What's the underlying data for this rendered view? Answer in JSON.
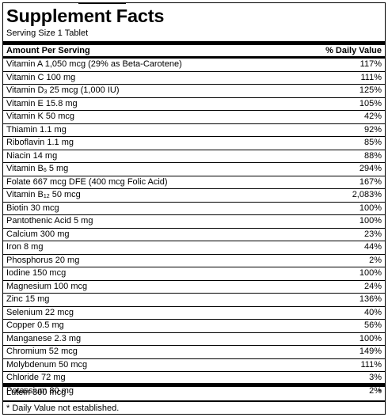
{
  "header": {
    "title": "Supplement Facts",
    "serving_size": "Serving Size 1 Tablet"
  },
  "columns": {
    "amount": "Amount Per Serving",
    "daily_value": "% Daily Value"
  },
  "nutrients": [
    {
      "name": "Vitamin A 1,050 mcg (29% as Beta-Carotene)",
      "dv": "117%"
    },
    {
      "name": "Vitamin C 100 mg",
      "dv": "111%"
    },
    {
      "name_pre": "Vitamin D",
      "name_sub": "3",
      "name_post": " 25 mcg (1,000 IU)",
      "dv": "125%"
    },
    {
      "name": "Vitamin E 15.8 mg",
      "dv": "105%"
    },
    {
      "name": "Vitamin K 50 mcg",
      "dv": "42%"
    },
    {
      "name": "Thiamin 1.1 mg",
      "dv": "92%"
    },
    {
      "name": "Riboflavin 1.1 mg",
      "dv": "85%"
    },
    {
      "name": "Niacin 14 mg",
      "dv": "88%"
    },
    {
      "name_pre": "Vitamin B",
      "name_sub": "6",
      "name_post": " 5 mg",
      "dv": "294%"
    },
    {
      "name": "Folate 667 mcg DFE (400 mcg Folic Acid)",
      "dv": "167%"
    },
    {
      "name_pre": "Vitamin B",
      "name_sub": "12",
      "name_post": " 50 mcg",
      "dv": "2,083%"
    },
    {
      "name": "Biotin 30 mcg",
      "dv": "100%"
    },
    {
      "name": "Pantothenic Acid 5 mg",
      "dv": "100%"
    },
    {
      "name": "Calcium 300 mg",
      "dv": "23%"
    },
    {
      "name": "Iron 8 mg",
      "dv": "44%"
    },
    {
      "name": "Phosphorus 20 mg",
      "dv": "2%"
    },
    {
      "name": "Iodine 150 mcg",
      "dv": "100%"
    },
    {
      "name": "Magnesium 100 mcg",
      "dv": "24%"
    },
    {
      "name": "Zinc  15 mg",
      "dv": "136%"
    },
    {
      "name": "Selenium 22 mcg",
      "dv": "40%"
    },
    {
      "name": "Copper 0.5 mg",
      "dv": "56%"
    },
    {
      "name": "Manganese 2.3 mg",
      "dv": "100%"
    },
    {
      "name": "Chromium 52 mcg",
      "dv": "149%"
    },
    {
      "name": "Molybdenum 50 mcg",
      "dv": "111%"
    },
    {
      "name": "Chloride 72 mg",
      "dv": "3%"
    },
    {
      "name": "Potassium 80 mg",
      "dv": "2%"
    }
  ],
  "other": {
    "name": "Lutein 300 mcg",
    "dv": "*"
  },
  "footnote": "* Daily Value not established."
}
